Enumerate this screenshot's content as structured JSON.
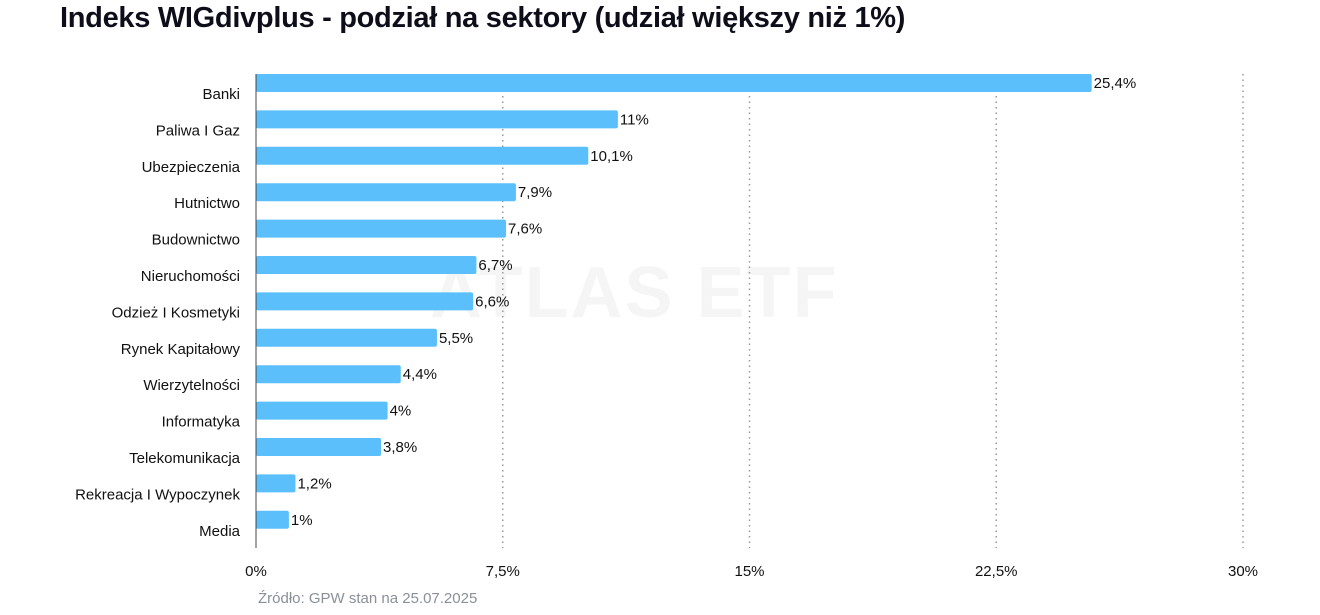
{
  "header": {
    "title": "Indeks WIGdivplus - podział na sektory (udział większy niż 1%)"
  },
  "footer": {
    "source": "Źródło: GPW stan na 25.07.2025"
  },
  "watermark": {
    "text": "ATLAS ETF"
  },
  "chart_data": {
    "type": "bar",
    "orientation": "horizontal",
    "title": "Indeks WIGdivplus - podział na sektory (udział większy niż 1%)",
    "categories": [
      "Banki",
      "Paliwa I Gaz",
      "Ubezpieczenia",
      "Hutnictwo",
      "Budownictwo",
      "Nieruchomości",
      "Odzież I Kosmetyki",
      "Rynek Kapitałowy",
      "Wierzytelności",
      "Informatyka",
      "Telekomunikacja",
      "Rekreacja I Wypoczynek",
      "Media"
    ],
    "values": [
      25.4,
      11,
      10.1,
      7.9,
      7.6,
      6.7,
      6.6,
      5.5,
      4.4,
      4,
      3.8,
      1.2,
      1
    ],
    "value_labels": [
      "25,4%",
      "11%",
      "10,1%",
      "7,9%",
      "7,6%",
      "6,7%",
      "6,6%",
      "5,5%",
      "4,4%",
      "4%",
      "3,8%",
      "1,2%",
      "1%"
    ],
    "xlim": [
      0,
      30
    ],
    "x_ticks": [
      0,
      7.5,
      15,
      22.5,
      30
    ],
    "x_tick_labels": [
      "0%",
      "7,5%",
      "15%",
      "22,5%",
      "30%"
    ],
    "xlabel": "",
    "ylabel": "",
    "grid": "vertical dotted",
    "legend": "none",
    "bar_color": "#5bbffb"
  }
}
